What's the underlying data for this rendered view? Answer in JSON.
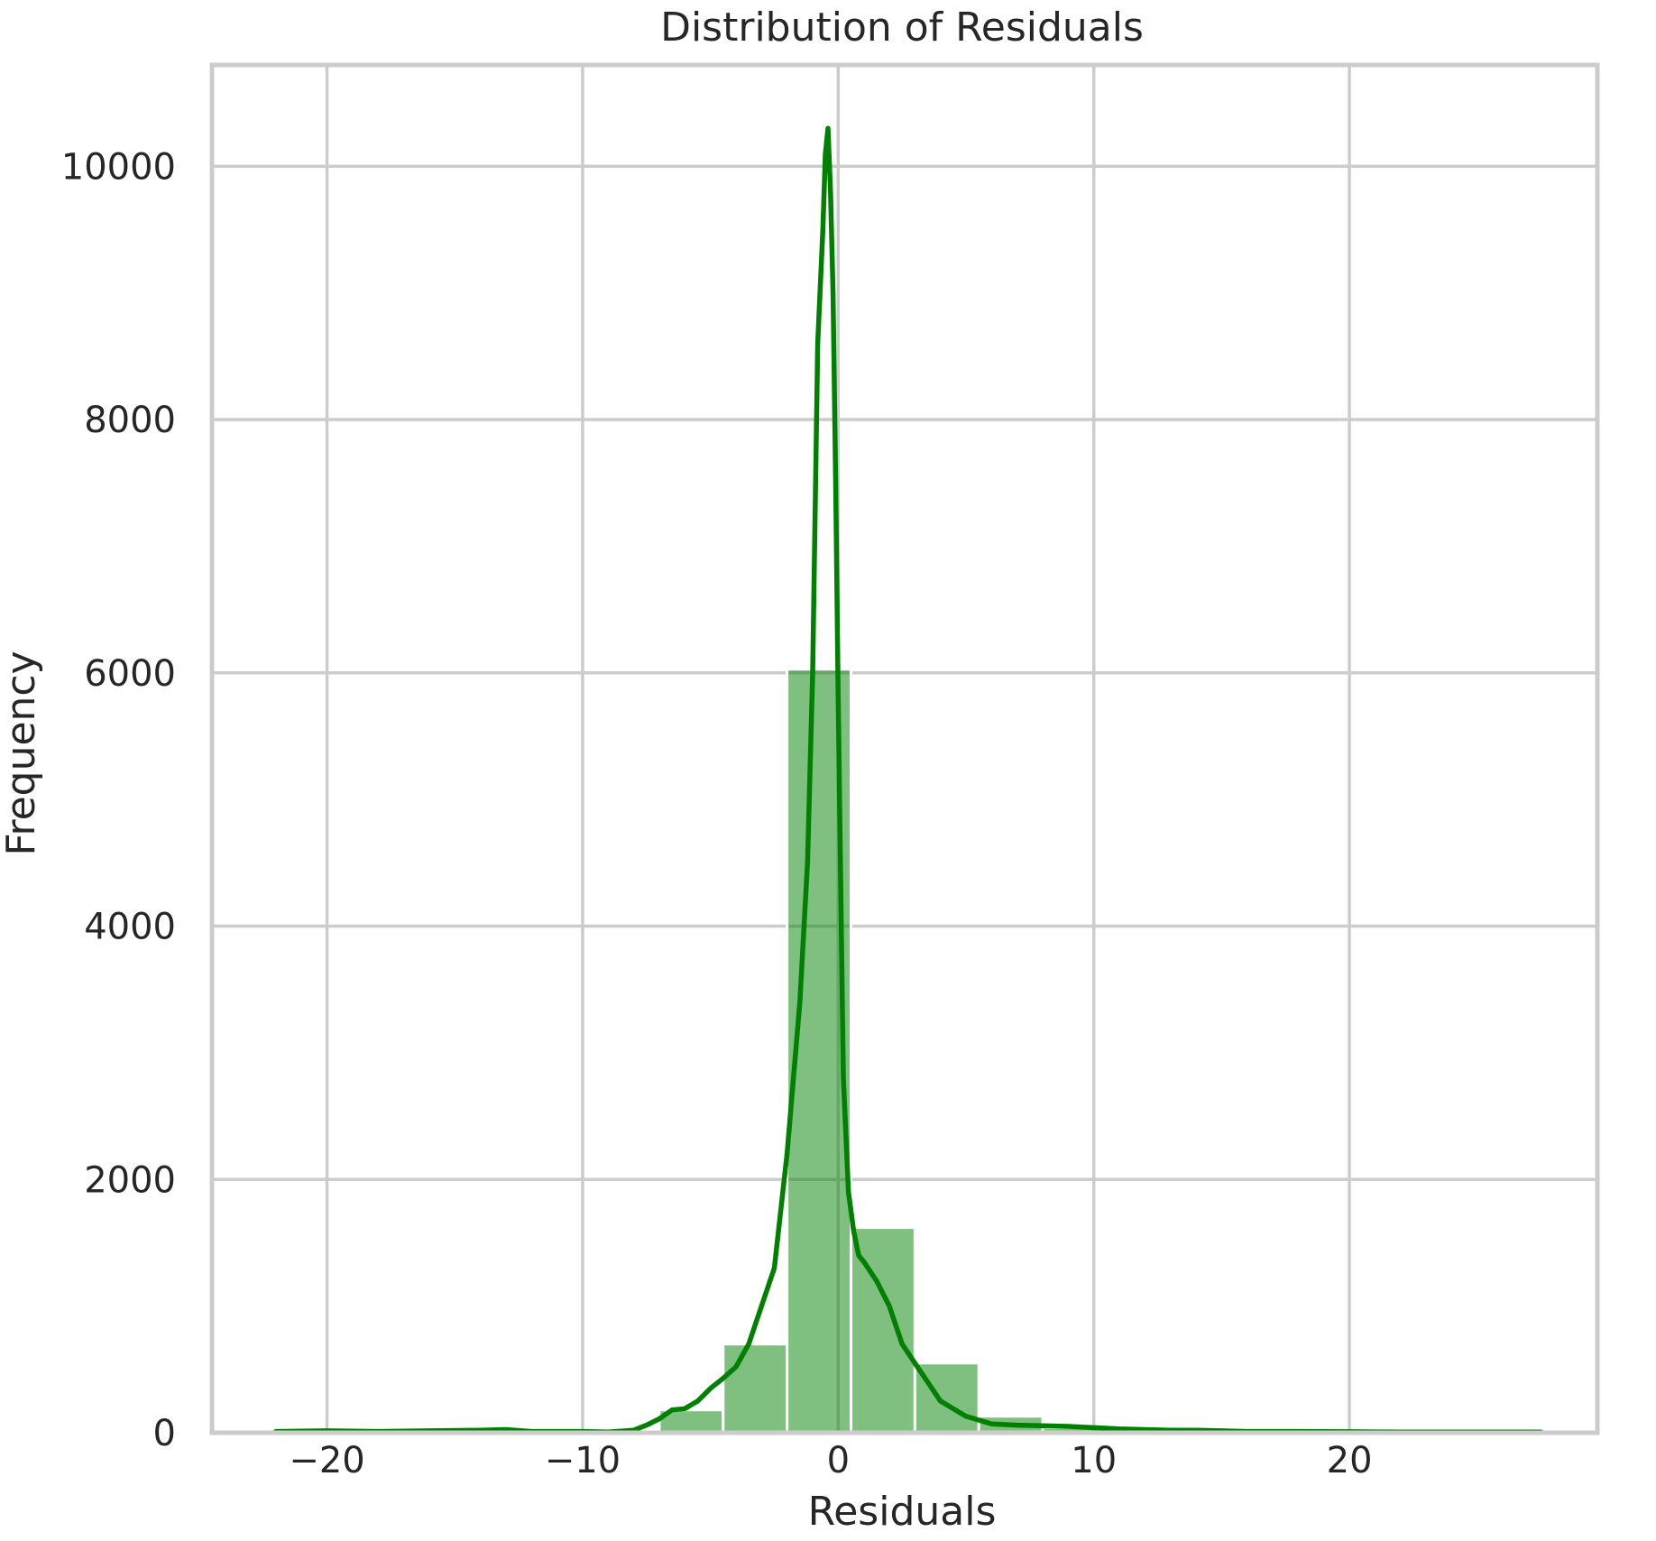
{
  "chart_data": {
    "type": "bar",
    "title": "Distribution of Residuals",
    "xlabel": "Residuals",
    "ylabel": "Frequency",
    "xlim": [
      -24.5,
      29.7
    ],
    "ylim": [
      0,
      10800
    ],
    "x_ticks": [
      -20,
      -10,
      0,
      10,
      20
    ],
    "x_tick_labels": [
      "−20",
      "−10",
      "0",
      "10",
      "20"
    ],
    "y_ticks": [
      0,
      2000,
      4000,
      6000,
      8000,
      10000
    ],
    "y_tick_labels": [
      "0",
      "2000",
      "4000",
      "6000",
      "8000",
      "10000"
    ],
    "grid": true,
    "bar_color": "#008000",
    "bar_opacity": 0.5,
    "line_color": "#008000",
    "bins": [
      {
        "x0": -22.0,
        "x1": -19.5,
        "count": 10
      },
      {
        "x0": -19.5,
        "x1": -17.0,
        "count": 5
      },
      {
        "x0": -17.0,
        "x1": -14.5,
        "count": 8
      },
      {
        "x0": -14.5,
        "x1": -12.0,
        "count": 15
      },
      {
        "x0": -12.0,
        "x1": -9.5,
        "count": 10
      },
      {
        "x0": -9.5,
        "x1": -7.0,
        "count": 5
      },
      {
        "x0": -7.0,
        "x1": -4.5,
        "count": 180
      },
      {
        "x0": -4.5,
        "x1": -2.0,
        "count": 700
      },
      {
        "x0": -2.0,
        "x1": 0.5,
        "count": 6030
      },
      {
        "x0": 0.5,
        "x1": 3.0,
        "count": 1620
      },
      {
        "x0": 3.0,
        "x1": 5.5,
        "count": 550
      },
      {
        "x0": 5.5,
        "x1": 8.0,
        "count": 130
      },
      {
        "x0": 8.0,
        "x1": 10.5,
        "count": 40
      },
      {
        "x0": 10.5,
        "x1": 13.0,
        "count": 15
      },
      {
        "x0": 13.0,
        "x1": 15.5,
        "count": 10
      },
      {
        "x0": 15.5,
        "x1": 18.0,
        "count": 5
      },
      {
        "x0": 18.0,
        "x1": 20.5,
        "count": 5
      },
      {
        "x0": 20.5,
        "x1": 23.0,
        "count": 5
      },
      {
        "x0": 23.0,
        "x1": 25.5,
        "count": 3
      },
      {
        "x0": 25.5,
        "x1": 28.0,
        "count": 3
      }
    ],
    "kde": {
      "x": [
        -22.0,
        -20.0,
        -18.0,
        -16.0,
        -14.0,
        -13.0,
        -12.0,
        -10.0,
        -9.0,
        -8.0,
        -7.5,
        -7.0,
        -6.5,
        -6.0,
        -5.5,
        -5.0,
        -4.5,
        -4.0,
        -3.5,
        -3.0,
        -2.5,
        -2.0,
        -1.5,
        -1.2,
        -1.0,
        -0.8,
        -0.6,
        -0.5,
        -0.4,
        -0.3,
        -0.2,
        -0.1,
        0.0,
        0.2,
        0.4,
        0.6,
        0.8,
        1.0,
        1.5,
        2.0,
        2.5,
        3.0,
        4.0,
        5.0,
        6.0,
        7.0,
        8.0,
        9.0,
        10.0,
        11.0,
        12.0,
        13.0,
        14.0,
        15.0,
        16.0,
        18.0,
        20.0,
        22.0,
        24.0,
        27.5
      ],
      "y": [
        10,
        15,
        10,
        15,
        20,
        25,
        10,
        10,
        5,
        20,
        60,
        110,
        180,
        190,
        250,
        350,
        430,
        520,
        700,
        1000,
        1300,
        2200,
        3400,
        4500,
        6000,
        8600,
        9500,
        10100,
        10300,
        9800,
        9000,
        7500,
        5800,
        2800,
        1900,
        1600,
        1400,
        1350,
        1200,
        1000,
        700,
        550,
        250,
        130,
        70,
        60,
        55,
        50,
        40,
        30,
        25,
        20,
        20,
        15,
        10,
        10,
        8,
        5,
        5,
        5
      ]
    }
  }
}
